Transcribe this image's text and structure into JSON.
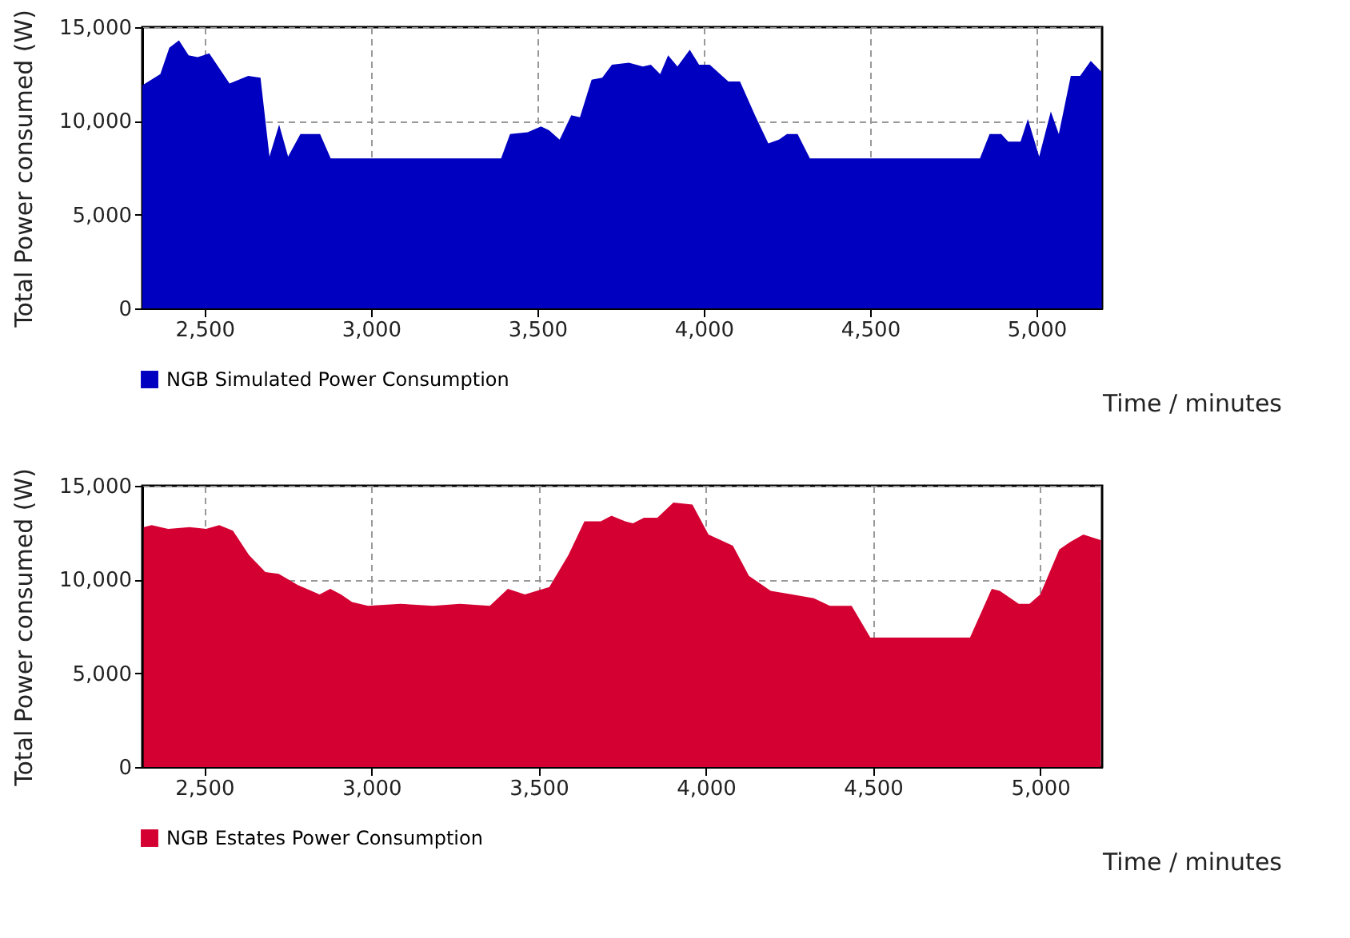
{
  "chart_data": [
    {
      "type": "area",
      "xlabel": "Time / minutes",
      "ylabel": "Total Power consumed (W)",
      "xlim": [
        2313,
        5197
      ],
      "xticks": [
        {
          "value": 2500,
          "label": "2,500"
        },
        {
          "value": 3000,
          "label": "3,000"
        },
        {
          "value": 3500,
          "label": "3,500"
        },
        {
          "value": 4000,
          "label": "4,000"
        },
        {
          "value": 4500,
          "label": "4,500"
        },
        {
          "value": 5000,
          "label": "5,000"
        }
      ],
      "ylim": [
        0,
        15000
      ],
      "yticks": [
        0,
        {
          "value": 5000,
          "label": "5,000"
        },
        {
          "value": 10000,
          "label": "10,000"
        },
        {
          "value": 15000,
          "label": "15,000"
        }
      ],
      "grid": true,
      "legend": "bottom left",
      "series": [
        {
          "name": "NGB Simulated Power Consumption",
          "color": "#0000c0",
          "x": [
            2313,
            2367,
            2394,
            2423,
            2452,
            2479,
            2514,
            2575,
            2631,
            2668,
            2695,
            2724,
            2751,
            2788,
            2847,
            2879,
            3391,
            3418,
            3471,
            3511,
            3535,
            3567,
            3602,
            3628,
            3663,
            3695,
            3724,
            3775,
            3817,
            3841,
            3869,
            3893,
            3921,
            3958,
            3986,
            4018,
            4074,
            4109,
            4154,
            4194,
            4226,
            4250,
            4282,
            4319,
            4830,
            4859,
            4894,
            4915,
            4952,
            4974,
            5008,
            5043,
            5067,
            5103,
            5131,
            5163,
            5196
          ],
          "values": [
            11900,
            12500,
            13900,
            14300,
            13500,
            13400,
            13600,
            12000,
            12400,
            12300,
            8100,
            9800,
            8100,
            9300,
            9300,
            8000,
            8000,
            9300,
            9400,
            9700,
            9500,
            9000,
            10300,
            10200,
            12200,
            12300,
            13000,
            13100,
            12900,
            13000,
            12500,
            13500,
            12900,
            13800,
            13000,
            13000,
            12100,
            12100,
            10300,
            8800,
            9000,
            9300,
            9300,
            8000,
            8000,
            9300,
            9300,
            8900,
            8900,
            10100,
            8100,
            10500,
            9300,
            12400,
            12400,
            13200,
            12600
          ]
        }
      ]
    },
    {
      "type": "area",
      "xlabel": "Time / minutes",
      "ylabel": "Total Power consumed (W)",
      "xlim": [
        2315,
        5185
      ],
      "xticks": [
        {
          "value": 2500,
          "label": "2,500"
        },
        {
          "value": 3000,
          "label": "3,000"
        },
        {
          "value": 3500,
          "label": "3,500"
        },
        {
          "value": 4000,
          "label": "4,000"
        },
        {
          "value": 4500,
          "label": "4,500"
        },
        {
          "value": 5000,
          "label": "5,000"
        }
      ],
      "ylim": [
        0,
        15000
      ],
      "yticks": [
        0,
        {
          "value": 5000,
          "label": "5,000"
        },
        {
          "value": 10000,
          "label": "10,000"
        },
        {
          "value": 15000,
          "label": "15,000"
        }
      ],
      "grid": true,
      "legend": "bottom left",
      "series": [
        {
          "name": "NGB Estates Power Consumption",
          "color": "#d40032",
          "x": [
            2319,
            2343,
            2392,
            2456,
            2505,
            2545,
            2586,
            2634,
            2683,
            2723,
            2780,
            2845,
            2877,
            2909,
            2942,
            2990,
            3087,
            3184,
            3265,
            3354,
            3408,
            3459,
            3532,
            3589,
            3637,
            3686,
            3718,
            3759,
            3782,
            3815,
            3855,
            3903,
            3960,
            4008,
            4081,
            4129,
            4194,
            4258,
            4323,
            4371,
            4436,
            4492,
            4790,
            4855,
            4879,
            4936,
            4968,
            5000,
            5057,
            5089,
            5129,
            5181
          ],
          "values": [
            12800,
            12900,
            12700,
            12800,
            12700,
            12900,
            12600,
            11300,
            10400,
            10300,
            9700,
            9200,
            9500,
            9200,
            8800,
            8600,
            8700,
            8600,
            8700,
            8600,
            9500,
            9200,
            9600,
            11300,
            13100,
            13100,
            13400,
            13100,
            13000,
            13300,
            13300,
            14100,
            14000,
            12400,
            11800,
            10200,
            9400,
            9200,
            9000,
            8600,
            8600,
            6900,
            6900,
            9500,
            9400,
            8700,
            8700,
            9200,
            11600,
            12000,
            12400,
            12100
          ]
        }
      ]
    }
  ]
}
